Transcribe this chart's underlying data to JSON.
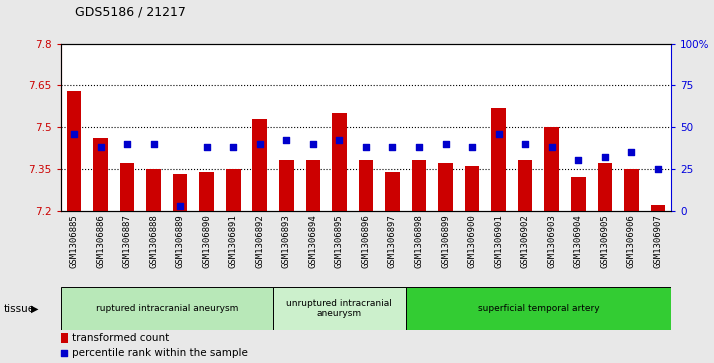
{
  "title": "GDS5186 / 21217",
  "samples": [
    "GSM1306885",
    "GSM1306886",
    "GSM1306887",
    "GSM1306888",
    "GSM1306889",
    "GSM1306890",
    "GSM1306891",
    "GSM1306892",
    "GSM1306893",
    "GSM1306894",
    "GSM1306895",
    "GSM1306896",
    "GSM1306897",
    "GSM1306898",
    "GSM1306899",
    "GSM1306900",
    "GSM1306901",
    "GSM1306902",
    "GSM1306903",
    "GSM1306904",
    "GSM1306905",
    "GSM1306906",
    "GSM1306907"
  ],
  "transformed_count": [
    7.63,
    7.46,
    7.37,
    7.35,
    7.33,
    7.34,
    7.35,
    7.53,
    7.38,
    7.38,
    7.55,
    7.38,
    7.34,
    7.38,
    7.37,
    7.36,
    7.57,
    7.38,
    7.5,
    7.32,
    7.37,
    7.35,
    7.22
  ],
  "percentile_rank": [
    46,
    38,
    40,
    40,
    3,
    38,
    38,
    40,
    42,
    40,
    42,
    38,
    38,
    38,
    40,
    38,
    46,
    40,
    38,
    30,
    32,
    35,
    25
  ],
  "ymin": 7.2,
  "ymax": 7.8,
  "yticks": [
    7.2,
    7.35,
    7.5,
    7.65,
    7.8
  ],
  "right_yticks": [
    0,
    25,
    50,
    75,
    100
  ],
  "right_ylabels": [
    "0",
    "25",
    "50",
    "75",
    "100%"
  ],
  "bar_color": "#cc0000",
  "dot_color": "#0000cc",
  "bg_color": "#e8e8e8",
  "plot_bg": "#ffffff",
  "tissue_groups": [
    {
      "label": "ruptured intracranial aneurysm",
      "start": 0,
      "end": 8,
      "color": "#b8e8b8"
    },
    {
      "label": "unruptured intracranial\naneurysm",
      "start": 8,
      "end": 13,
      "color": "#ccf0cc"
    },
    {
      "label": "superficial temporal artery",
      "start": 13,
      "end": 23,
      "color": "#33cc33"
    }
  ],
  "tissue_label": "tissue",
  "legend_bar_label": "transformed count",
  "legend_dot_label": "percentile rank within the sample"
}
